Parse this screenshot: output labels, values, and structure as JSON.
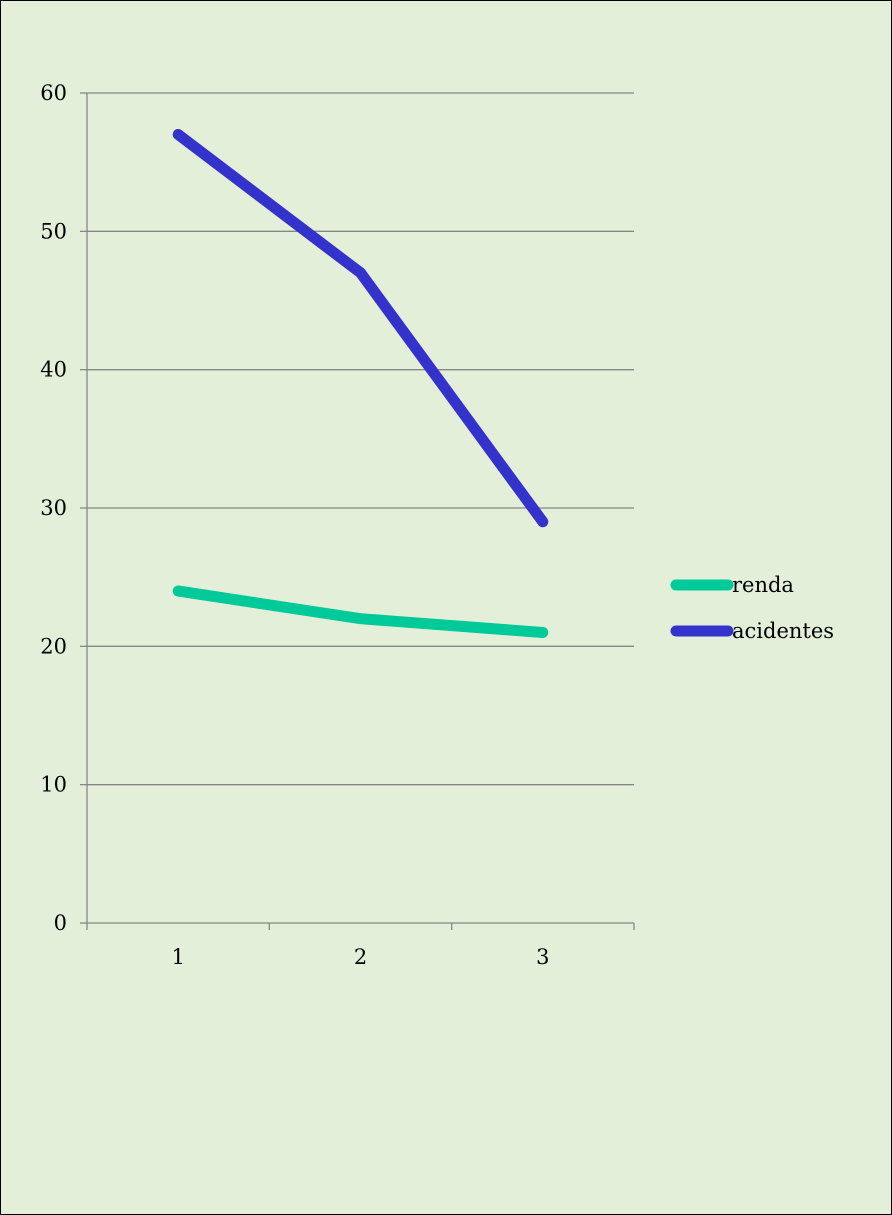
{
  "chart_data": {
    "type": "line",
    "title": "",
    "xlabel": "",
    "ylabel": "",
    "categories": [
      "1",
      "2",
      "3"
    ],
    "ylim": [
      0,
      60
    ],
    "yticks": [
      0,
      10,
      20,
      30,
      40,
      50,
      60
    ],
    "grid": true,
    "legend_position": "right",
    "background_color": "#e3efd9",
    "series": [
      {
        "name": "renda",
        "values": [
          24,
          22,
          21
        ],
        "color": "#00c99a"
      },
      {
        "name": "acidentes",
        "values": [
          57,
          47,
          29
        ],
        "color": "#3333cc"
      }
    ]
  }
}
